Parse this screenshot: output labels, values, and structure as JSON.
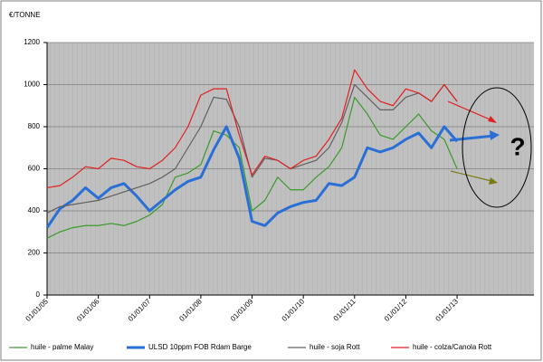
{
  "chart_data": {
    "type": "line",
    "y_axis_label": "€/TONNE",
    "x": [
      2005,
      2005.25,
      2005.5,
      2005.75,
      2006,
      2006.25,
      2006.5,
      2006.75,
      2007,
      2007.25,
      2007.5,
      2007.75,
      2008,
      2008.25,
      2008.5,
      2008.75,
      2009,
      2009.25,
      2009.5,
      2009.75,
      2010,
      2010.25,
      2010.5,
      2010.75,
      2011,
      2011.25,
      2011.5,
      2011.75,
      2012,
      2012.25,
      2012.5,
      2012.75,
      2013
    ],
    "series": [
      {
        "name": "huile - palme Malay",
        "color": "#3a9a2a",
        "line_width": 1.2,
        "values": [
          270,
          300,
          320,
          330,
          330,
          340,
          330,
          350,
          380,
          430,
          560,
          580,
          620,
          780,
          760,
          700,
          400,
          450,
          560,
          500,
          500,
          560,
          610,
          700,
          940,
          860,
          760,
          740,
          800,
          860,
          780,
          740,
          600
        ]
      },
      {
        "name": "ULSD 10ppm FOB Rdam Barge",
        "color": "#2a6fd6",
        "line_width": 3,
        "values": [
          320,
          410,
          450,
          510,
          460,
          510,
          530,
          470,
          400,
          450,
          500,
          540,
          560,
          690,
          800,
          650,
          350,
          330,
          390,
          420,
          440,
          450,
          530,
          520,
          560,
          700,
          680,
          700,
          740,
          770,
          700,
          800,
          730
        ]
      },
      {
        "name": "huile - soja Rott",
        "color": "#606060",
        "line_width": 1.2,
        "values": [
          390,
          420,
          430,
          440,
          450,
          470,
          490,
          510,
          530,
          560,
          600,
          700,
          800,
          940,
          930,
          800,
          560,
          650,
          640,
          600,
          620,
          640,
          700,
          820,
          1000,
          940,
          880,
          880,
          940,
          960,
          920,
          1000,
          920
        ]
      },
      {
        "name": "huile - colza/Canola Rott",
        "color": "#e02020",
        "line_width": 1.2,
        "values": [
          510,
          520,
          560,
          610,
          600,
          650,
          640,
          610,
          600,
          640,
          700,
          800,
          950,
          980,
          980,
          760,
          570,
          660,
          640,
          600,
          640,
          660,
          740,
          840,
          1070,
          980,
          920,
          900,
          980,
          960,
          920,
          1000,
          920
        ]
      }
    ],
    "xlim": [
      2005,
      2014.5
    ],
    "xticks": [
      {
        "value": 2005,
        "label": "01/01/05"
      },
      {
        "value": 2006,
        "label": "01/01/06"
      },
      {
        "value": 2007,
        "label": "01/01/07"
      },
      {
        "value": 2008,
        "label": "01/01/08"
      },
      {
        "value": 2009,
        "label": "01/01/09"
      },
      {
        "value": 2010,
        "label": "01/01/10"
      },
      {
        "value": 2011,
        "label": "01/01/11"
      },
      {
        "value": 2012,
        "label": "01/01/12"
      },
      {
        "value": 2013,
        "label": "01/01/13"
      }
    ],
    "ylim": [
      0,
      1200
    ],
    "yticks": [
      0,
      200,
      400,
      600,
      800,
      1000,
      1200
    ],
    "grid": true,
    "annotation": "?"
  }
}
